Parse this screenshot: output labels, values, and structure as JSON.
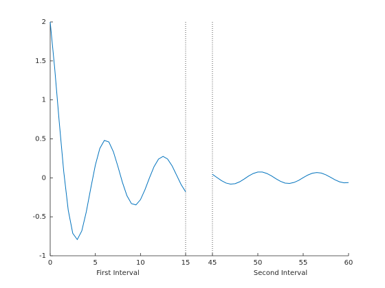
{
  "chart_data": {
    "type": "line",
    "color": "#0072bd",
    "ylim": [
      -1,
      2
    ],
    "yticks": [
      -1,
      -0.5,
      0,
      0.5,
      1,
      1.5,
      2
    ],
    "panels": [
      {
        "xlabel": "First Interval",
        "xlim": [
          0,
          15
        ],
        "xticks": [
          0,
          5,
          10,
          15
        ],
        "x": [
          0,
          0.5,
          1,
          1.5,
          2,
          2.5,
          3,
          3.5,
          4,
          4.5,
          5,
          5.5,
          6,
          6.5,
          7,
          7.5,
          8,
          8.5,
          9,
          9.5,
          10,
          10.5,
          11,
          11.5,
          12,
          12.5,
          13,
          13.5,
          14,
          14.5,
          15
        ],
        "values": [
          2.0,
          1.404,
          0.72,
          0.081,
          -0.416,
          -0.712,
          -0.792,
          -0.681,
          -0.436,
          -0.13,
          0.162,
          0.378,
          0.48,
          0.46,
          0.335,
          0.146,
          -0.058,
          -0.229,
          -0.331,
          -0.347,
          -0.28,
          -0.152,
          0.001,
          0.143,
          0.241,
          0.275,
          0.242,
          0.154,
          0.034,
          -0.086,
          -0.179
        ]
      },
      {
        "xlabel": "Second Interval",
        "xlim": [
          45,
          60
        ],
        "xticks": [
          45,
          50,
          55,
          60
        ],
        "x": [
          45,
          45.5,
          46,
          46.5,
          47,
          47.5,
          48,
          48.5,
          49,
          49.5,
          50,
          50.5,
          51,
          51.5,
          52,
          52.5,
          53,
          53.5,
          54,
          54.5,
          55,
          55.5,
          56,
          56.5,
          57,
          57.5,
          58,
          58.5,
          59,
          59.5,
          60
        ],
        "values": [
          0.045,
          0.004,
          -0.036,
          -0.067,
          -0.081,
          -0.075,
          -0.051,
          -0.015,
          0.024,
          0.056,
          0.074,
          0.074,
          0.056,
          0.025,
          -0.012,
          -0.045,
          -0.067,
          -0.072,
          -0.059,
          -0.033,
          0.002,
          0.035,
          0.059,
          0.068,
          0.061,
          0.039,
          0.008,
          -0.025,
          -0.051,
          -0.064,
          -0.061
        ]
      }
    ]
  }
}
